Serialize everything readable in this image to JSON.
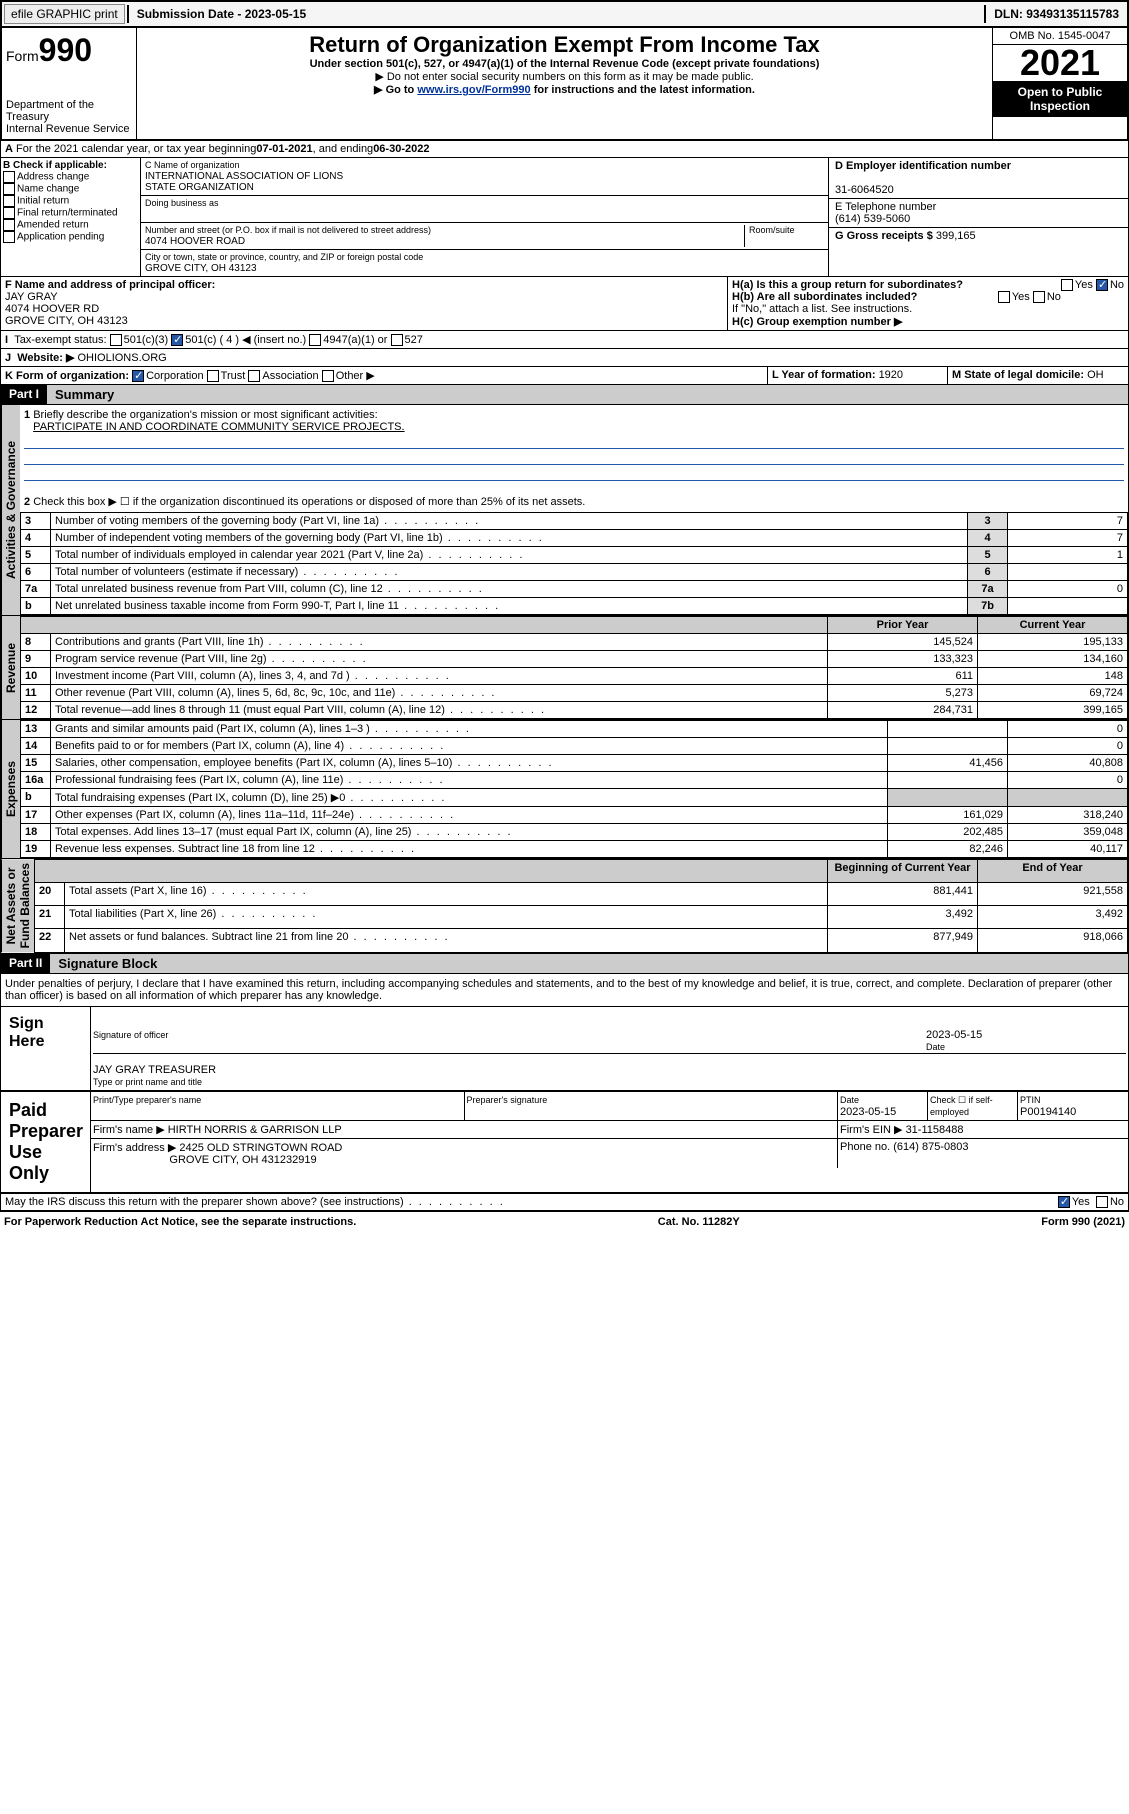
{
  "topbar": {
    "efile": "efile GRAPHIC print",
    "sub_date_lbl": "Submission Date - ",
    "sub_date": "2023-05-15",
    "dln_lbl": "DLN: ",
    "dln": "93493135115783"
  },
  "header": {
    "form_prefix": "Form",
    "form_num": "990",
    "dept": "Department of the Treasury\nInternal Revenue Service",
    "title": "Return of Organization Exempt From Income Tax",
    "subtitle": "Under section 501(c), 527, or 4947(a)(1) of the Internal Revenue Code (except private foundations)",
    "note1": "▶ Do not enter social security numbers on this form as it may be made public.",
    "note2_pre": "▶ Go to ",
    "note2_link": "www.irs.gov/Form990",
    "note2_post": " for instructions and the latest information.",
    "omb": "OMB No. 1545-0047",
    "year": "2021",
    "open": "Open to Public Inspection"
  },
  "lineA": {
    "text": "For the 2021 calendar year, or tax year beginning ",
    "begin": "07-01-2021",
    "mid": " , and ending ",
    "end": "06-30-2022"
  },
  "colB": {
    "hdr": "B Check if applicable:",
    "items": [
      "Address change",
      "Name change",
      "Initial return",
      "Final return/terminated",
      "Amended return",
      "Application pending"
    ]
  },
  "colC": {
    "name_lbl": "C Name of organization",
    "name": "INTERNATIONAL ASSOCIATION OF LIONS\nSTATE ORGANIZATION",
    "dba_lbl": "Doing business as",
    "dba": "",
    "addr_lbl": "Number and street (or P.O. box if mail is not delivered to street address)",
    "room_lbl": "Room/suite",
    "addr": "4074 HOOVER ROAD",
    "city_lbl": "City or town, state or province, country, and ZIP or foreign postal code",
    "city": "GROVE CITY, OH  43123"
  },
  "colD": {
    "ein_lbl": "D Employer identification number",
    "ein": "31-6064520",
    "tel_lbl": "E Telephone number",
    "tel": "(614) 539-5060",
    "gross_lbl": "G Gross receipts $ ",
    "gross": "399,165"
  },
  "rowF": {
    "lbl": "F  Name and address of principal officer:",
    "name": "JAY GRAY",
    "addr": "4074 HOOVER RD",
    "city": "GROVE CITY, OH  43123"
  },
  "rowH": {
    "a_lbl": "H(a)  Is this a group return for subordinates?",
    "a_no": "No",
    "b_lbl": "H(b)  Are all subordinates included?",
    "b_note": "If \"No,\" attach a list. See instructions.",
    "c_lbl": "H(c)  Group exemption number ▶"
  },
  "rowI": {
    "lbl": "Tax-exempt status:",
    "opts": [
      "501(c)(3)",
      "501(c) ( 4 ) ◀ (insert no.)",
      "4947(a)(1) or",
      "527"
    ]
  },
  "rowJ": {
    "lbl": "Website: ▶",
    "val": " OHIOLIONS.ORG"
  },
  "rowK": {
    "lbl": "K Form of organization:",
    "opts": [
      "Corporation",
      "Trust",
      "Association",
      "Other ▶"
    ]
  },
  "rowL": {
    "lbl": "L Year of formation: ",
    "val": "1920"
  },
  "rowM": {
    "lbl": "M State of legal domicile: ",
    "val": "OH"
  },
  "part1": {
    "hdr": "Part I",
    "title": "Summary"
  },
  "summary": {
    "l1": "Briefly describe the organization's mission or most significant activities:",
    "l1v": "PARTICIPATE IN AND COORDINATE COMMUNITY SERVICE PROJECTS.",
    "l2": "Check this box ▶ ☐  if the organization discontinued its operations or disposed of more than 25% of its net assets.",
    "rows": [
      {
        "n": "3",
        "d": "Number of voting members of the governing body (Part VI, line 1a)",
        "box": "3",
        "v": "7"
      },
      {
        "n": "4",
        "d": "Number of independent voting members of the governing body (Part VI, line 1b)",
        "box": "4",
        "v": "7"
      },
      {
        "n": "5",
        "d": "Total number of individuals employed in calendar year 2021 (Part V, line 2a)",
        "box": "5",
        "v": "1"
      },
      {
        "n": "6",
        "d": "Total number of volunteers (estimate if necessary)",
        "box": "6",
        "v": ""
      },
      {
        "n": "7a",
        "d": "Total unrelated business revenue from Part VIII, column (C), line 12",
        "box": "7a",
        "v": "0"
      },
      {
        "n": "b",
        "d": "Net unrelated business taxable income from Form 990-T, Part I, line 11",
        "box": "7b",
        "v": ""
      }
    ],
    "colhdr": {
      "prior": "Prior Year",
      "curr": "Current Year"
    },
    "rev": [
      {
        "n": "8",
        "d": "Contributions and grants (Part VIII, line 1h)",
        "p": "145,524",
        "c": "195,133"
      },
      {
        "n": "9",
        "d": "Program service revenue (Part VIII, line 2g)",
        "p": "133,323",
        "c": "134,160"
      },
      {
        "n": "10",
        "d": "Investment income (Part VIII, column (A), lines 3, 4, and 7d )",
        "p": "611",
        "c": "148"
      },
      {
        "n": "11",
        "d": "Other revenue (Part VIII, column (A), lines 5, 6d, 8c, 9c, 10c, and 11e)",
        "p": "5,273",
        "c": "69,724"
      },
      {
        "n": "12",
        "d": "Total revenue—add lines 8 through 11 (must equal Part VIII, column (A), line 12)",
        "p": "284,731",
        "c": "399,165"
      }
    ],
    "exp": [
      {
        "n": "13",
        "d": "Grants and similar amounts paid (Part IX, column (A), lines 1–3 )",
        "p": "",
        "c": "0"
      },
      {
        "n": "14",
        "d": "Benefits paid to or for members (Part IX, column (A), line 4)",
        "p": "",
        "c": "0"
      },
      {
        "n": "15",
        "d": "Salaries, other compensation, employee benefits (Part IX, column (A), lines 5–10)",
        "p": "41,456",
        "c": "40,808"
      },
      {
        "n": "16a",
        "d": "Professional fundraising fees (Part IX, column (A), line 11e)",
        "p": "",
        "c": "0"
      },
      {
        "n": "b",
        "d": "Total fundraising expenses (Part IX, column (D), line 25) ▶0",
        "p": "shade",
        "c": "shade"
      },
      {
        "n": "17",
        "d": "Other expenses (Part IX, column (A), lines 11a–11d, 11f–24e)",
        "p": "161,029",
        "c": "318,240"
      },
      {
        "n": "18",
        "d": "Total expenses. Add lines 13–17 (must equal Part IX, column (A), line 25)",
        "p": "202,485",
        "c": "359,048"
      },
      {
        "n": "19",
        "d": "Revenue less expenses. Subtract line 18 from line 12",
        "p": "82,246",
        "c": "40,117"
      }
    ],
    "nethdr": {
      "beg": "Beginning of Current Year",
      "end": "End of Year"
    },
    "net": [
      {
        "n": "20",
        "d": "Total assets (Part X, line 16)",
        "p": "881,441",
        "c": "921,558"
      },
      {
        "n": "21",
        "d": "Total liabilities (Part X, line 26)",
        "p": "3,492",
        "c": "3,492"
      },
      {
        "n": "22",
        "d": "Net assets or fund balances. Subtract line 21 from line 20",
        "p": "877,949",
        "c": "918,066"
      }
    ]
  },
  "tabs": {
    "gov": "Activities & Governance",
    "rev": "Revenue",
    "exp": "Expenses",
    "net": "Net Assets or\nFund Balances"
  },
  "part2": {
    "hdr": "Part II",
    "title": "Signature Block",
    "decl": "Under penalties of perjury, I declare that I have examined this return, including accompanying schedules and statements, and to the best of my knowledge and belief, it is true, correct, and complete. Declaration of preparer (other than officer) is based on all information of which preparer has any knowledge."
  },
  "sign": {
    "lbl": "Sign Here",
    "sig_lbl": "Signature of officer",
    "date_lbl": "Date",
    "date": "2023-05-15",
    "name": "JAY GRAY  TREASURER",
    "name_lbl": "Type or print name and title"
  },
  "paid": {
    "lbl": "Paid Preparer Use Only",
    "c1": "Print/Type preparer's name",
    "c2": "Preparer's signature",
    "c3": "Date",
    "c3v": "2023-05-15",
    "c4": "Check ☐ if self-employed",
    "c5": "PTIN",
    "c5v": "P00194140",
    "firm_lbl": "Firm's name    ▶ ",
    "firm": "HIRTH NORRIS & GARRISON LLP",
    "ein_lbl": "Firm's EIN ▶ ",
    "ein": "31-1158488",
    "addr_lbl": "Firm's address ▶ ",
    "addr": "2425 OLD STRINGTOWN ROAD",
    "city": "GROVE CITY, OH  431232919",
    "phone_lbl": "Phone no. ",
    "phone": "(614) 875-0803"
  },
  "may": {
    "q": "May the IRS discuss this return with the preparer shown above? (see instructions)",
    "yes": "Yes",
    "no": "No"
  },
  "footer": {
    "l": "For Paperwork Reduction Act Notice, see the separate instructions.",
    "m": "Cat. No. 11282Y",
    "r": "Form 990 (2021)"
  }
}
